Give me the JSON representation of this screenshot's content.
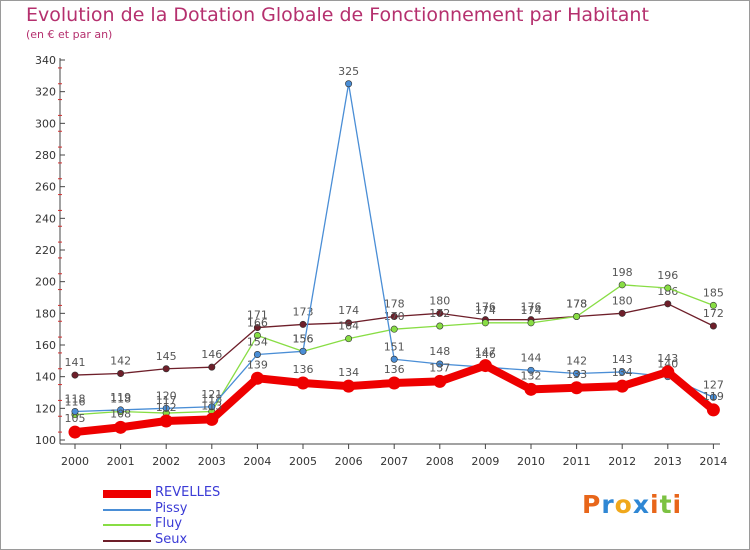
{
  "header": {
    "title": "Evolution de la Dotation Globale de Fonctionnement par Habitant",
    "subtitle": "(en € et par an)"
  },
  "chart_data": {
    "type": "line",
    "categories": [
      "2000",
      "2001",
      "2002",
      "2003",
      "2004",
      "2005",
      "2006",
      "2007",
      "2008",
      "2009",
      "2010",
      "2011",
      "2012",
      "2013",
      "2014"
    ],
    "ylim": [
      100,
      340
    ],
    "yticks": [
      100,
      120,
      140,
      160,
      180,
      200,
      220,
      240,
      260,
      280,
      300,
      320,
      340
    ],
    "grid": false,
    "series": [
      {
        "name": "REVELLES",
        "color": "#ee0000",
        "values": [
          105,
          108,
          112,
          113,
          139,
          136,
          134,
          136,
          137,
          147,
          132,
          133,
          134,
          143,
          119
        ]
      },
      {
        "name": "Pissy",
        "color": "#4a8ed6",
        "values": [
          118,
          119,
          120,
          121,
          154,
          156,
          325,
          151,
          148,
          146,
          144,
          142,
          143,
          140,
          127
        ]
      },
      {
        "name": "Fluy",
        "color": "#88dd44",
        "values": [
          116,
          118,
          117,
          118,
          166,
          156,
          164,
          170,
          172,
          174,
          174,
          178,
          198,
          196,
          185
        ]
      },
      {
        "name": "Seux",
        "color": "#6e1f2a",
        "values": [
          141,
          142,
          145,
          146,
          171,
          173,
          174,
          178,
          180,
          176,
          176,
          178,
          180,
          186,
          172
        ]
      }
    ]
  },
  "legend": {
    "items": [
      {
        "label": "REVELLES",
        "color": "#ee0000",
        "width": 8
      },
      {
        "label": "Pissy",
        "color": "#4a8ed6",
        "width": 2
      },
      {
        "label": "Fluy",
        "color": "#88dd44",
        "width": 2
      },
      {
        "label": "Seux",
        "color": "#6e1f2a",
        "width": 2
      }
    ]
  },
  "brand": {
    "letters": [
      "P",
      "r",
      "o",
      "x",
      "i",
      "t",
      "i"
    ],
    "colors": [
      "#e8661a",
      "#2f87d4",
      "#f0a81c",
      "#2f87d4",
      "#e8661a",
      "#7cc242",
      "#e8661a"
    ]
  }
}
